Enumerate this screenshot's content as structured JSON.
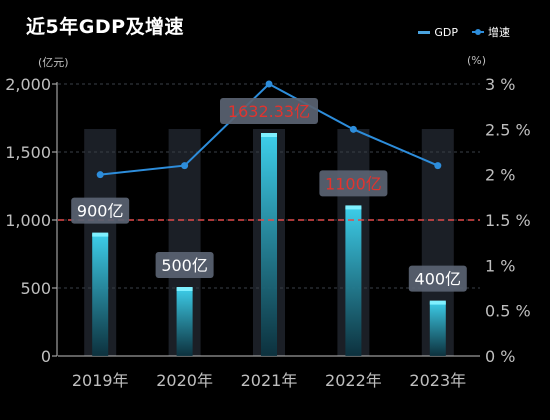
{
  "chart_data": {
    "type": "bar",
    "title": "近5年GDP及增速",
    "categories": [
      "2019年",
      "2020年",
      "2021年",
      "2022年",
      "2023年"
    ],
    "legend": [
      "GDP",
      "增速"
    ],
    "series": [
      {
        "name": "GDP",
        "type": "bar",
        "axis": "left",
        "values": [
          900,
          500,
          1632.33,
          1100,
          400
        ],
        "labels": [
          "900亿",
          "500亿",
          "1632.33亿",
          "1100亿",
          "400亿"
        ]
      },
      {
        "name": "增速",
        "type": "line",
        "axis": "right",
        "values": [
          2.0,
          2.1,
          3.0,
          2.5,
          2.1
        ]
      }
    ],
    "y_left": {
      "unit": "(亿元)",
      "ylim": [
        0,
        2000
      ],
      "ticks": [
        0,
        500,
        1000,
        1500,
        2000
      ],
      "tick_labels": [
        "0",
        "500",
        "1,000",
        "1,500",
        "2,000"
      ]
    },
    "y_right": {
      "unit": "(%)",
      "ylim": [
        0,
        3
      ],
      "ticks": [
        0,
        0.5,
        1,
        1.5,
        2,
        2.5,
        3
      ],
      "tick_labels": [
        "0 %",
        "0.5 %",
        "1 %",
        "1.5 %",
        "2 %",
        "2.5 %",
        "3 %"
      ]
    },
    "reference_line": {
      "axis": "left",
      "value": 1000,
      "color": "#e24a4a"
    },
    "grid": true,
    "legend_position": "top-right",
    "colors": {
      "background": "#000000",
      "bar_top": "#3fd8f5",
      "bar_bottom": "#0b3340",
      "bar_cap": "#7ff0ff",
      "column_shadow": "#1b1f26",
      "line": "#2d8ddb",
      "label_box": "#5a6372",
      "label_text_default": "#ffffff",
      "label_text_highlight": "#e0342f",
      "axis_text": "#bfbfbf",
      "grid": "#3a3f47"
    },
    "highlighted_labels": [
      2,
      3
    ]
  }
}
